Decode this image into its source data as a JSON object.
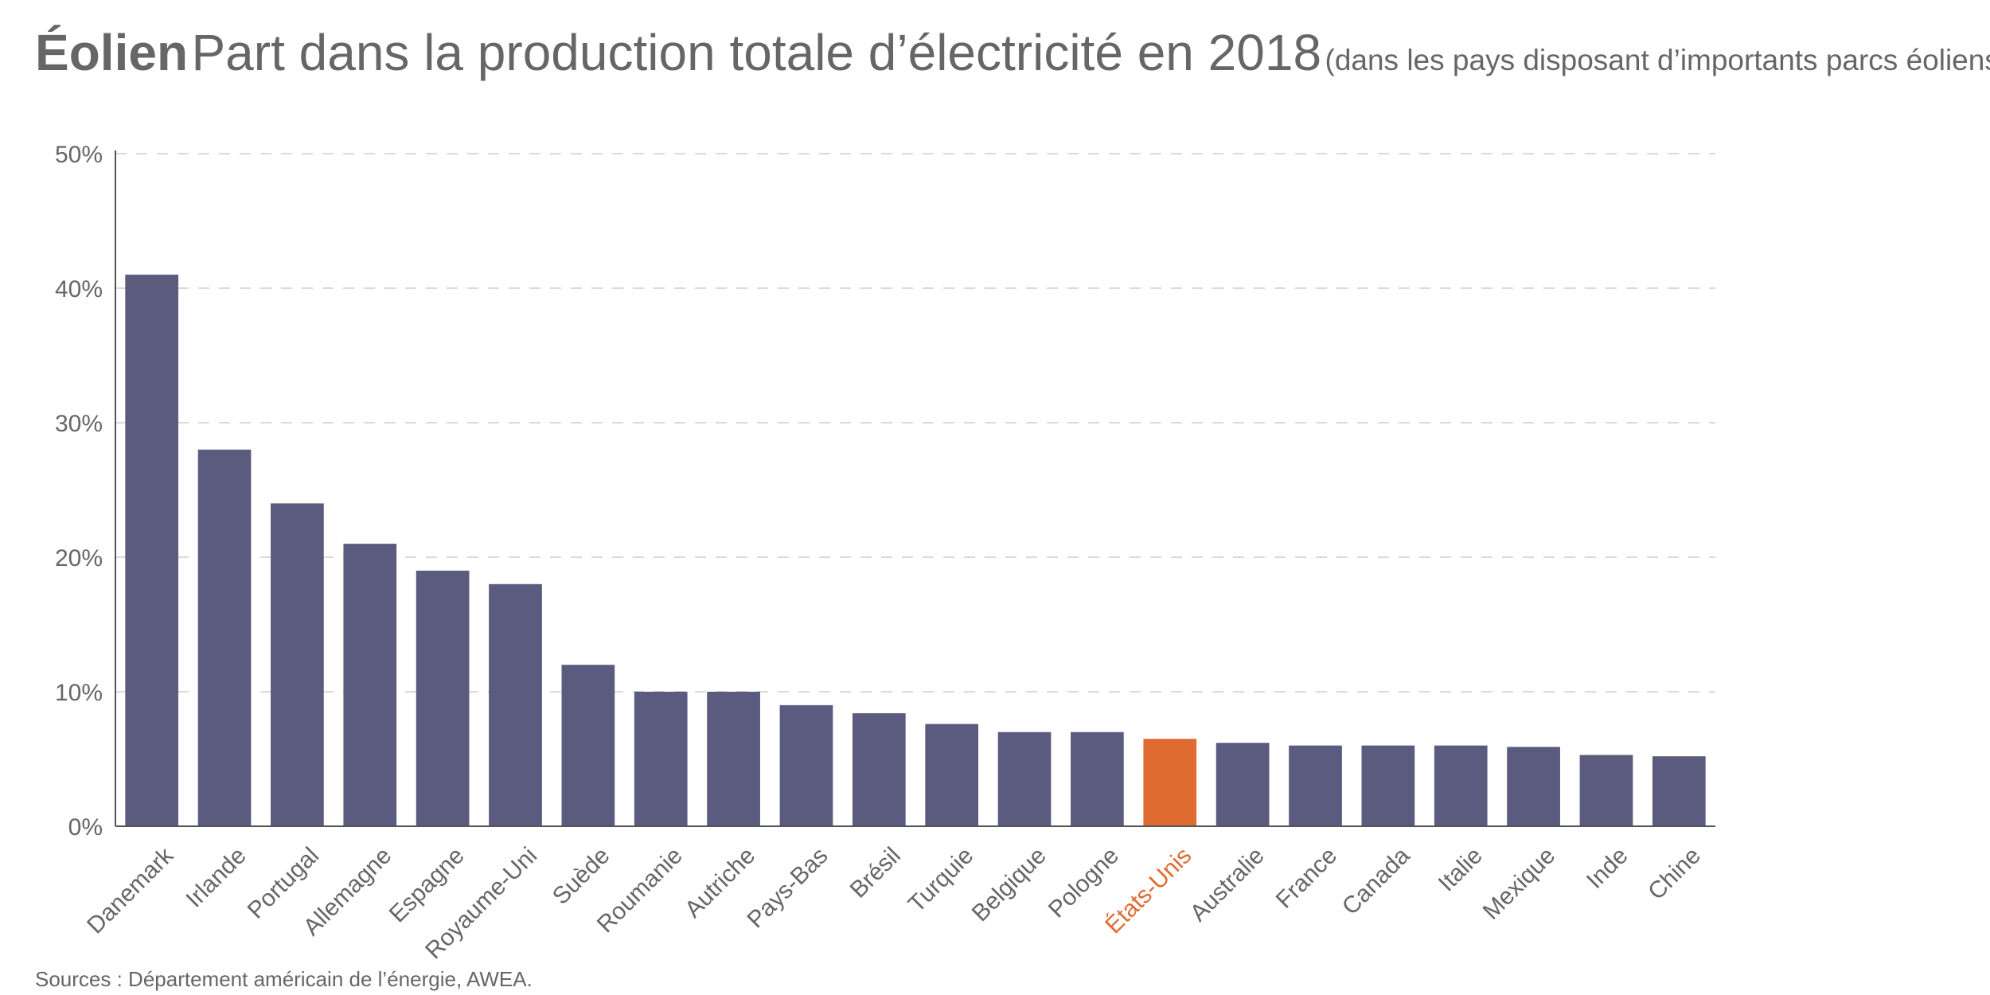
{
  "title": {
    "bold": "Éolien",
    "main": "Part dans la production totale d’électricité en 2018",
    "sub": "(dans les pays disposant d’importants parcs éoliens)"
  },
  "source": "Sources : Département américain de l’énergie, AWEA.",
  "colors": {
    "bar": "#5b5a7f",
    "highlight": "#e06b30",
    "text": "#666666",
    "grid": "#d9d9d9",
    "axis": "#555555"
  },
  "chart_data": {
    "type": "bar",
    "title": "Éolien Part dans la production totale d’électricité en 2018",
    "subtitle": "(dans les pays disposant d’importants parcs éoliens)",
    "xlabel": "",
    "ylabel": "",
    "ylim": [
      0,
      50
    ],
    "yticks": [
      0,
      10,
      20,
      30,
      40,
      50
    ],
    "ytick_labels": [
      "0%",
      "10%",
      "20%",
      "30%",
      "40%",
      "50%"
    ],
    "grid": true,
    "categories": [
      "Danemark",
      "Irlande",
      "Portugal",
      "Allemagne",
      "Espagne",
      "Royaume-Uni",
      "Suède",
      "Roumanie",
      "Autriche",
      "Pays-Bas",
      "Brésil",
      "Turquie",
      "Belgique",
      "Pologne",
      "États-Unis",
      "Australie",
      "France",
      "Canada",
      "Italie",
      "Mexique",
      "Inde",
      "Chine"
    ],
    "values": [
      41,
      28,
      24,
      21,
      19,
      18,
      12,
      10,
      10,
      9,
      8.4,
      7.6,
      7,
      7,
      6.5,
      6.2,
      6,
      6,
      6,
      5.9,
      5.3,
      5.2
    ],
    "highlight": "États-Unis"
  }
}
